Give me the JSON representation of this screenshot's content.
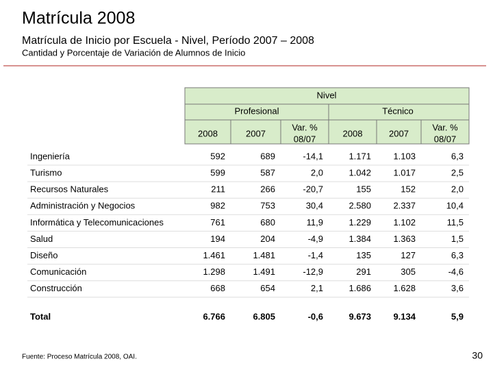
{
  "header": {
    "title": "Matrícula 2008",
    "subtitle": "Matrícula de Inicio por Escuela - Nivel, Período 2007 – 2008",
    "caption": "Cantidad y Porcentaje de Variación de Alumnos de Inicio"
  },
  "table": {
    "group": "Nivel",
    "subgroups": [
      "Profesional",
      "Técnico"
    ],
    "columns": [
      [
        "2008"
      ],
      [
        "2007"
      ],
      [
        "Var. %",
        "08/07"
      ],
      [
        "2008"
      ],
      [
        "2007"
      ],
      [
        "Var. %",
        "08/07"
      ]
    ],
    "rows": [
      [
        "Ingeniería",
        "592",
        "689",
        "-14,1",
        "1.171",
        "1.103",
        "6,3"
      ],
      [
        "Turismo",
        "599",
        "587",
        "2,0",
        "1.042",
        "1.017",
        "2,5"
      ],
      [
        "Recursos Naturales",
        "211",
        "266",
        "-20,7",
        "155",
        "152",
        "2,0"
      ],
      [
        "Administración y Negocios",
        "982",
        "753",
        "30,4",
        "2.580",
        "2.337",
        "10,4"
      ],
      [
        "Informática y Telecomunicaciones",
        "761",
        "680",
        "11,9",
        "1.229",
        "1.102",
        "11,5"
      ],
      [
        "Salud",
        "194",
        "204",
        "-4,9",
        "1.384",
        "1.363",
        "1,5"
      ],
      [
        "Diseño",
        "1.461",
        "1.481",
        "-1,4",
        "135",
        "127",
        "6,3"
      ],
      [
        "Comunicación",
        "1.298",
        "1.491",
        "-12,9",
        "291",
        "305",
        "-4,6"
      ],
      [
        "Construcción",
        "668",
        "654",
        "2,1",
        "1.686",
        "1.628",
        "3,6"
      ]
    ],
    "total": [
      "Total",
      "6.766",
      "6.805",
      "-0,6",
      "9.673",
      "9.134",
      "5,9"
    ]
  },
  "footer": {
    "source": "Fuente: Proceso Matrícula 2008, OAI.",
    "page": "30"
  }
}
